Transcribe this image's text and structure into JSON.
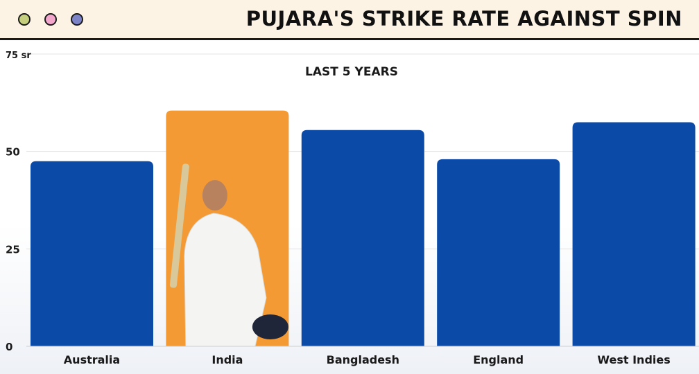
{
  "window": {
    "dots": [
      {
        "name": "window-dot-green",
        "color": "#c5cf7e"
      },
      {
        "name": "window-dot-pink",
        "color": "#f2a6cc"
      },
      {
        "name": "window-dot-blue",
        "color": "#7d83c7"
      }
    ],
    "title": "PUJARA'S STRIKE RATE AGAINST SPIN"
  },
  "chart_data": {
    "type": "bar",
    "subtitle": "LAST 5 YEARS",
    "categories": [
      "Australia",
      "India",
      "Bangladesh",
      "England",
      "West Indies"
    ],
    "values": [
      47.5,
      60.5,
      55.5,
      48,
      57.5
    ],
    "highlight": "India",
    "ylim": [
      0,
      75
    ],
    "yticks": [
      "0",
      "25",
      "50",
      "75 sr"
    ],
    "ytick_values": [
      0,
      25,
      50,
      75
    ],
    "grid": true,
    "colors": {
      "bar": "#0b4aa6",
      "bar_highlight": "#f49a34",
      "text": "#1a1a1a",
      "grid": "#e3e3e3"
    }
  }
}
